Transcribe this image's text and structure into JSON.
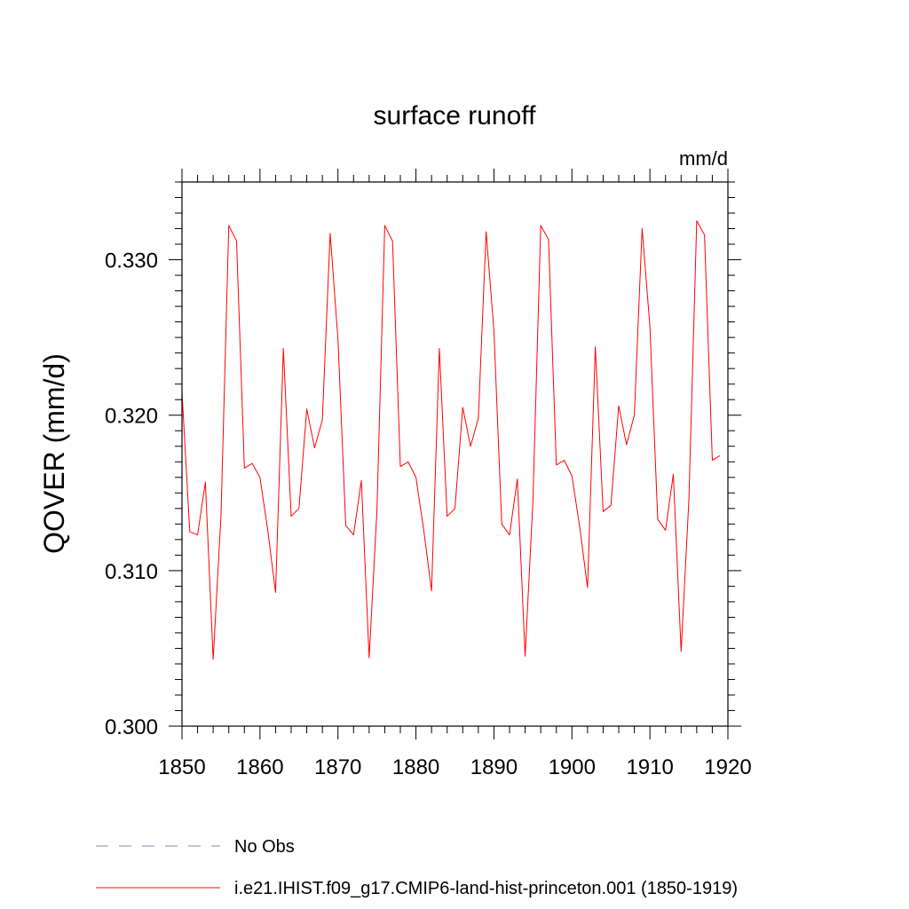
{
  "chart_data": {
    "type": "line",
    "title": "surface runoff",
    "units": "mm/d",
    "xlabel": "",
    "ylabel": "QOVER  (mm/d)",
    "xlim": [
      1850,
      1920
    ],
    "ylim": [
      0.3,
      0.335
    ],
    "x_ticks": [
      1850,
      1860,
      1870,
      1880,
      1890,
      1900,
      1910,
      1920
    ],
    "x_tick_labels": [
      "1850",
      "1860",
      "1870",
      "1880",
      "1890",
      "1900",
      "1910",
      "1920"
    ],
    "y_ticks": [
      0.3,
      0.31,
      0.32,
      0.33
    ],
    "y_tick_labels": [
      "0.300",
      "0.310",
      "0.320",
      "0.330"
    ],
    "grid": false,
    "legend_position": "bottom",
    "series": [
      {
        "name": "No Obs",
        "color": "#8a84c6",
        "dash": "dashed",
        "x": [],
        "values": []
      },
      {
        "name": "i.e21.IHIST.f09_g17.CMIP6-land-hist-princeton.001 (1850-1919)",
        "color": "#ff0000",
        "dash": "solid",
        "x": [
          1850,
          1851,
          1852,
          1853,
          1854,
          1855,
          1856,
          1857,
          1858,
          1859,
          1860,
          1861,
          1862,
          1863,
          1864,
          1865,
          1866,
          1867,
          1868,
          1869,
          1870,
          1871,
          1872,
          1873,
          1874,
          1875,
          1876,
          1877,
          1878,
          1879,
          1880,
          1881,
          1882,
          1883,
          1884,
          1885,
          1886,
          1887,
          1888,
          1889,
          1890,
          1891,
          1892,
          1893,
          1894,
          1895,
          1896,
          1897,
          1898,
          1899,
          1900,
          1901,
          1902,
          1903,
          1904,
          1905,
          1906,
          1907,
          1908,
          1909,
          1910,
          1911,
          1912,
          1913,
          1914,
          1915,
          1916,
          1917,
          1918,
          1919
        ],
        "values": [
          0.3215,
          0.3125,
          0.3123,
          0.3157,
          0.3043,
          0.3135,
          0.3322,
          0.3312,
          0.3166,
          0.3169,
          0.316,
          0.3126,
          0.3086,
          0.3243,
          0.3135,
          0.314,
          0.3204,
          0.3179,
          0.3197,
          0.3317,
          0.3249,
          0.3129,
          0.3123,
          0.3158,
          0.3044,
          0.3139,
          0.3322,
          0.3312,
          0.3167,
          0.317,
          0.316,
          0.3126,
          0.3087,
          0.3243,
          0.3135,
          0.314,
          0.3205,
          0.318,
          0.3198,
          0.3318,
          0.3254,
          0.313,
          0.3123,
          0.3159,
          0.3045,
          0.3145,
          0.3322,
          0.3313,
          0.3168,
          0.3171,
          0.3161,
          0.3128,
          0.3089,
          0.3244,
          0.3138,
          0.3142,
          0.3206,
          0.3181,
          0.32,
          0.332,
          0.3257,
          0.3133,
          0.3126,
          0.3162,
          0.3048,
          0.3146,
          0.3325,
          0.3316,
          0.3171,
          0.3174
        ]
      }
    ]
  }
}
